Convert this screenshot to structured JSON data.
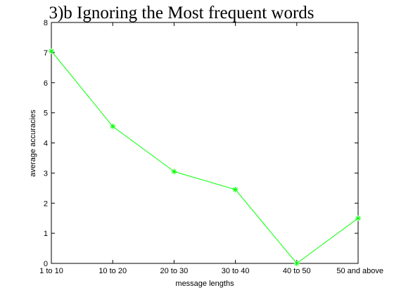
{
  "chart_data": {
    "type": "line",
    "title": "3)b Ignoring the Most frequent words",
    "xlabel": "message lengths",
    "ylabel": "average accuracies",
    "categories": [
      "1 to 10",
      "10 to 20",
      "20 to 30",
      "30 to 40",
      "40 to 50",
      "50 and above"
    ],
    "series": [
      {
        "values": [
          7.05,
          4.55,
          3.05,
          2.45,
          0.0,
          1.5
        ],
        "color": "#00ff00",
        "marker": "asterisk"
      }
    ],
    "ylim": [
      0,
      8
    ],
    "yticks": [
      0,
      1,
      2,
      3,
      4,
      5,
      6,
      7,
      8
    ],
    "grid": false,
    "legend": "none"
  }
}
